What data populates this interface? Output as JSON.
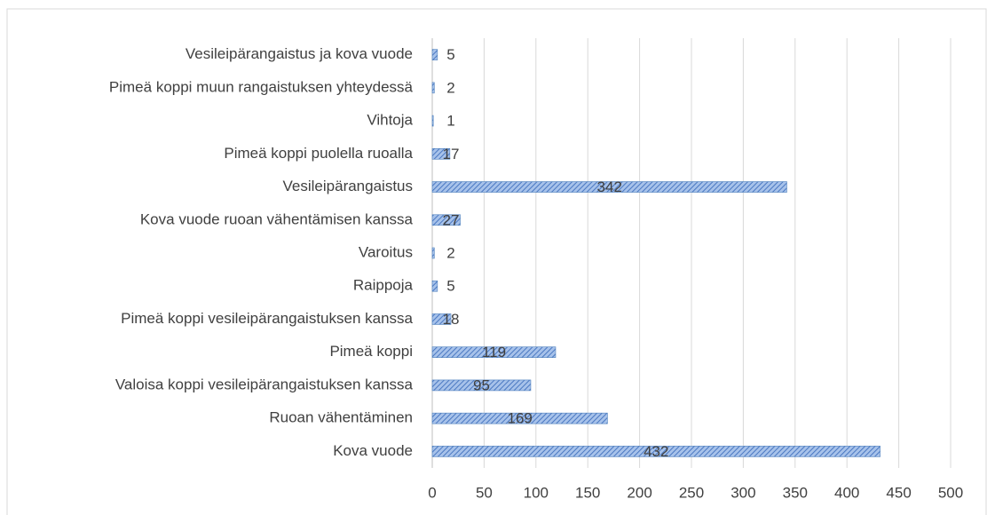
{
  "chart_data": {
    "type": "hbar",
    "categories": [
      "Vesileipärangaistus ja kova vuode",
      "Pimeä koppi muun rangaistuksen yhteydessä",
      "Vihtoja",
      "Pimeä koppi puolella ruoalla",
      "Vesileipärangaistus",
      "Kova vuode ruoan vähentämisen kanssa",
      "Varoitus",
      "Raippoja",
      "Pimeä koppi vesileipärangaistuksen kanssa",
      "Pimeä koppi",
      "Valoisa koppi vesileipärangaistuksen kanssa",
      "Ruoan vähentäminen",
      "Kova vuode"
    ],
    "values": [
      5,
      2,
      1,
      17,
      342,
      27,
      2,
      5,
      18,
      119,
      95,
      169,
      432
    ],
    "color": "#4f81bd",
    "xlim": [
      0,
      500
    ],
    "xticks": [
      0,
      50,
      100,
      150,
      200,
      250,
      300,
      350,
      400,
      450,
      500
    ],
    "grid": true
  }
}
